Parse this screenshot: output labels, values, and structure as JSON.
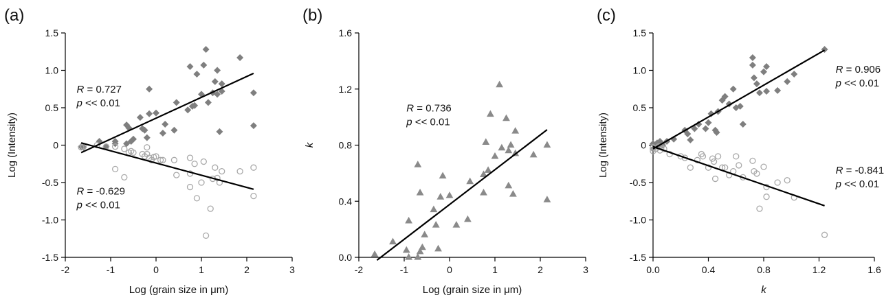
{
  "chart_data": [
    {
      "type": "scatter",
      "panel_label": "(a)",
      "xlabel": "Log (grain size in μm)",
      "ylabel": "Log (Intensity)",
      "xlim": [
        -2,
        3
      ],
      "ylim": [
        -1.5,
        1.5
      ],
      "xticks": [
        -2,
        -1,
        0,
        1,
        2,
        3
      ],
      "xtick_labels": [
        "-2",
        "-1",
        "0",
        "1",
        "2",
        "3"
      ],
      "yticks": [
        -1.5,
        -1.0,
        -0.5,
        0,
        0.5,
        1.0,
        1.5
      ],
      "ytick_labels": [
        "-1.5",
        "-1.0",
        "-0.5",
        "0",
        "0.5",
        "1.0",
        "1.5"
      ],
      "series": [
        {
          "marker": "diamond",
          "color": "#7f7f7f",
          "points": [
            [
              -1.65,
              -0.02
            ],
            [
              -1.6,
              -0.03
            ],
            [
              -1.25,
              0.05
            ],
            [
              -1.1,
              -0.02
            ],
            [
              -0.9,
              0.05
            ],
            [
              -0.9,
              0.02
            ],
            [
              -0.65,
              0.27
            ],
            [
              -0.65,
              0.02
            ],
            [
              -0.6,
              0.23
            ],
            [
              -0.55,
              0.05
            ],
            [
              -0.5,
              0.08
            ],
            [
              -0.35,
              0.37
            ],
            [
              -0.3,
              0.22
            ],
            [
              -0.25,
              0.2
            ],
            [
              -0.2,
              0.1
            ],
            [
              -0.15,
              0.42
            ],
            [
              -0.15,
              0.75
            ],
            [
              0,
              0.43
            ],
            [
              0.15,
              0.16
            ],
            [
              0.2,
              0.28
            ],
            [
              0.4,
              0.2
            ],
            [
              0.45,
              0.57
            ],
            [
              0.7,
              0.47
            ],
            [
              0.75,
              1.05
            ],
            [
              0.8,
              0.52
            ],
            [
              0.85,
              0.53
            ],
            [
              0.9,
              0.95
            ],
            [
              1.0,
              0.68
            ],
            [
              1.05,
              1.07
            ],
            [
              1.1,
              1.28
            ],
            [
              1.15,
              0.57
            ],
            [
              1.25,
              0.7
            ],
            [
              1.3,
              0.85
            ],
            [
              1.35,
              0.68
            ],
            [
              1.35,
              1.0
            ],
            [
              1.4,
              0.18
            ],
            [
              1.45,
              0.82
            ],
            [
              1.45,
              0.72
            ],
            [
              1.85,
              1.17
            ],
            [
              2.15,
              0.7
            ],
            [
              2.15,
              0.26
            ]
          ]
        },
        {
          "marker": "circle",
          "color": "#a9a9a9",
          "points": [
            [
              -1.65,
              -0.03
            ],
            [
              -1.6,
              -0.02
            ],
            [
              -1.3,
              0.0
            ],
            [
              -1.1,
              -0.02
            ],
            [
              -0.9,
              -0.02
            ],
            [
              -0.9,
              -0.32
            ],
            [
              -0.7,
              -0.05
            ],
            [
              -0.7,
              -0.43
            ],
            [
              -0.6,
              -0.1
            ],
            [
              -0.55,
              -0.08
            ],
            [
              -0.5,
              -0.1
            ],
            [
              -0.3,
              -0.12
            ],
            [
              -0.25,
              -0.15
            ],
            [
              -0.2,
              -0.03
            ],
            [
              -0.2,
              -0.12
            ],
            [
              -0.15,
              -0.17
            ],
            [
              -0.1,
              -0.2
            ],
            [
              -0.05,
              -0.16
            ],
            [
              0,
              -0.15
            ],
            [
              0.1,
              -0.2
            ],
            [
              0.15,
              -0.2
            ],
            [
              0.4,
              -0.2
            ],
            [
              0.45,
              -0.4
            ],
            [
              0.75,
              -0.17
            ],
            [
              0.75,
              -0.38
            ],
            [
              0.75,
              -0.56
            ],
            [
              0.85,
              -0.25
            ],
            [
              0.9,
              -0.71
            ],
            [
              1.0,
              -0.5
            ],
            [
              1.05,
              -0.22
            ],
            [
              1.1,
              -1.21
            ],
            [
              1.2,
              -0.85
            ],
            [
              1.25,
              -0.45
            ],
            [
              1.3,
              -0.3
            ],
            [
              1.35,
              -0.44
            ],
            [
              1.4,
              -0.5
            ],
            [
              1.45,
              -0.35
            ],
            [
              1.85,
              -0.35
            ],
            [
              2.15,
              -0.3
            ],
            [
              2.15,
              -0.68
            ]
          ]
        }
      ],
      "fit_lines": [
        {
          "x": [
            -1.65,
            2.15
          ],
          "y": [
            -0.1,
            0.96
          ]
        },
        {
          "x": [
            -1.65,
            2.15
          ],
          "y": [
            0.03,
            -0.59
          ]
        }
      ],
      "annotations": [
        {
          "r": "R = 0.727",
          "p": "p << 0.01",
          "x": -1.75,
          "y": 0.7
        },
        {
          "r": "R = -0.629",
          "p": "p << 0.01",
          "x": -1.75,
          "y": -0.66
        }
      ]
    },
    {
      "type": "scatter",
      "panel_label": "(b)",
      "xlabel": "Log (grain size in μm)",
      "ylabel": "k",
      "xlim": [
        -2,
        3
      ],
      "ylim": [
        0,
        1.6
      ],
      "xticks": [
        -2,
        -1,
        0,
        1,
        2,
        3
      ],
      "xtick_labels": [
        "-2",
        "-1",
        "0",
        "1",
        "2",
        "3"
      ],
      "yticks": [
        0,
        0.4,
        0.8,
        1.2,
        1.6
      ],
      "ytick_labels": [
        "0.0",
        "0.4",
        "0.8",
        "1.2",
        "1.6"
      ],
      "series": [
        {
          "marker": "triangle",
          "color": "#8a8a8a",
          "points": [
            [
              -1.65,
              0.02
            ],
            [
              -1.25,
              0.11
            ],
            [
              -0.95,
              0.05
            ],
            [
              -0.9,
              0.26
            ],
            [
              -0.9,
              0.0
            ],
            [
              -0.7,
              0.66
            ],
            [
              -0.7,
              0.0
            ],
            [
              -0.65,
              0.04
            ],
            [
              -0.6,
              0.07
            ],
            [
              -0.65,
              0.46
            ],
            [
              -0.55,
              0.16
            ],
            [
              -0.35,
              0.34
            ],
            [
              -0.3,
              0.23
            ],
            [
              -0.25,
              0.06
            ],
            [
              -0.2,
              0.43
            ],
            [
              -0.15,
              0.58
            ],
            [
              0,
              0.44
            ],
            [
              0.15,
              0.23
            ],
            [
              0.4,
              0.27
            ],
            [
              0.45,
              0.54
            ],
            [
              0.75,
              0.46
            ],
            [
              0.75,
              0.59
            ],
            [
              0.8,
              0.82
            ],
            [
              0.85,
              0.62
            ],
            [
              0.9,
              1.02
            ],
            [
              1.0,
              0.72
            ],
            [
              1.1,
              1.23
            ],
            [
              1.15,
              0.78
            ],
            [
              1.25,
              0.99
            ],
            [
              1.3,
              0.76
            ],
            [
              1.3,
              0.51
            ],
            [
              1.35,
              0.8
            ],
            [
              1.4,
              0.45
            ],
            [
              1.45,
              0.74
            ],
            [
              1.45,
              0.9
            ],
            [
              1.85,
              0.73
            ],
            [
              2.15,
              0.8
            ],
            [
              2.15,
              0.41
            ]
          ]
        }
      ],
      "fit_lines": [
        {
          "x": [
            -1.6,
            2.15
          ],
          "y": [
            -0.02,
            0.91
          ]
        }
      ],
      "annotations": [
        {
          "r": "R = 0.736",
          "p": "p << 0.01",
          "x": -0.95,
          "y": 1.04
        }
      ]
    },
    {
      "type": "scatter",
      "panel_label": "(c)",
      "xlabel": "k",
      "ylabel": "Log (Intensity)",
      "xlim": [
        0,
        1.6
      ],
      "ylim": [
        -1.5,
        1.5
      ],
      "xticks": [
        0,
        0.4,
        0.8,
        1.2,
        1.6
      ],
      "xtick_labels": [
        "0.0",
        "0.4",
        "0.8",
        "1.2",
        "1.6"
      ],
      "yticks": [
        -1.5,
        -1.0,
        -0.5,
        0,
        0.5,
        1.0,
        1.5
      ],
      "ytick_labels": [
        "-1.5",
        "-1.0",
        "-0.5",
        "0",
        "0.5",
        "1.0",
        "1.5"
      ],
      "series": [
        {
          "marker": "diamond",
          "color": "#7f7f7f",
          "points": [
            [
              0.0,
              -0.05
            ],
            [
              0.0,
              0.02
            ],
            [
              0.02,
              0.0
            ],
            [
              0.03,
              0.03
            ],
            [
              0.04,
              0.0
            ],
            [
              0.05,
              0.05
            ],
            [
              0.06,
              0.02
            ],
            [
              0.07,
              0.0
            ],
            [
              0.1,
              0.05
            ],
            [
              0.15,
              0.08
            ],
            [
              0.23,
              0.2
            ],
            [
              0.25,
              0.15
            ],
            [
              0.27,
              0.07
            ],
            [
              0.3,
              0.22
            ],
            [
              0.33,
              0.28
            ],
            [
              0.38,
              0.22
            ],
            [
              0.4,
              0.3
            ],
            [
              0.42,
              0.42
            ],
            [
              0.45,
              0.2
            ],
            [
              0.46,
              0.17
            ],
            [
              0.47,
              0.45
            ],
            [
              0.5,
              0.6
            ],
            [
              0.52,
              0.65
            ],
            [
              0.55,
              0.55
            ],
            [
              0.58,
              0.75
            ],
            [
              0.6,
              0.5
            ],
            [
              0.63,
              0.52
            ],
            [
              0.65,
              0.28
            ],
            [
              0.72,
              1.17
            ],
            [
              0.72,
              1.07
            ],
            [
              0.73,
              0.9
            ],
            [
              0.75,
              0.82
            ],
            [
              0.77,
              0.7
            ],
            [
              0.8,
              0.98
            ],
            [
              0.82,
              1.05
            ],
            [
              0.82,
              0.72
            ],
            [
              0.9,
              0.73
            ],
            [
              0.97,
              0.85
            ],
            [
              1.02,
              0.95
            ],
            [
              1.24,
              1.28
            ]
          ]
        },
        {
          "marker": "circle",
          "color": "#a9a9a9",
          "points": [
            [
              0.0,
              -0.03
            ],
            [
              0.0,
              -0.08
            ],
            [
              0.02,
              -0.05
            ],
            [
              0.04,
              -0.02
            ],
            [
              0.05,
              -0.07
            ],
            [
              0.06,
              -0.03
            ],
            [
              0.08,
              -0.05
            ],
            [
              0.12,
              -0.12
            ],
            [
              0.2,
              -0.15
            ],
            [
              0.23,
              -0.17
            ],
            [
              0.27,
              -0.3
            ],
            [
              0.32,
              -0.2
            ],
            [
              0.35,
              -0.12
            ],
            [
              0.36,
              -0.15
            ],
            [
              0.4,
              -0.3
            ],
            [
              0.43,
              -0.18
            ],
            [
              0.44,
              -0.22
            ],
            [
              0.45,
              -0.45
            ],
            [
              0.47,
              -0.15
            ],
            [
              0.5,
              -0.3
            ],
            [
              0.52,
              -0.3
            ],
            [
              0.55,
              -0.4
            ],
            [
              0.58,
              -0.35
            ],
            [
              0.6,
              -0.15
            ],
            [
              0.62,
              -0.27
            ],
            [
              0.65,
              -0.43
            ],
            [
              0.72,
              -0.21
            ],
            [
              0.73,
              -0.35
            ],
            [
              0.75,
              -0.38
            ],
            [
              0.77,
              -0.85
            ],
            [
              0.8,
              -0.29
            ],
            [
              0.82,
              -0.56
            ],
            [
              0.82,
              -0.69
            ],
            [
              0.9,
              -0.5
            ],
            [
              0.97,
              -0.47
            ],
            [
              1.02,
              -0.7
            ],
            [
              1.24,
              -1.2
            ]
          ]
        }
      ],
      "fit_lines": [
        {
          "x": [
            0.0,
            1.24
          ],
          "y": [
            -0.05,
            1.27
          ]
        },
        {
          "x": [
            0.0,
            1.24
          ],
          "y": [
            -0.02,
            -0.81
          ]
        }
      ],
      "annotations": [
        {
          "r": "R = 0.906",
          "p": "p << 0.01",
          "x": 1.32,
          "y": 0.97
        },
        {
          "r": "R = -0.841",
          "p": "p << 0.01",
          "x": 1.32,
          "y": -0.38
        }
      ]
    }
  ]
}
